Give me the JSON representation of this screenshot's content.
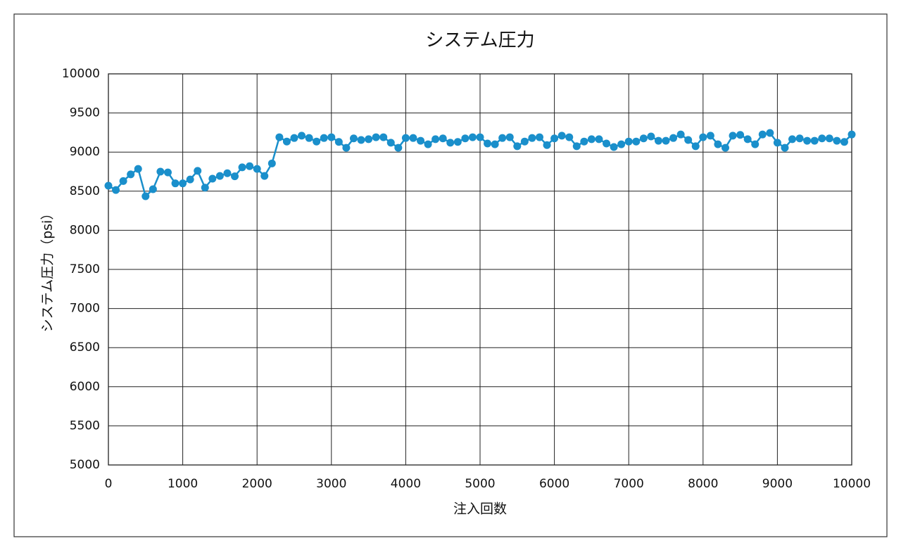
{
  "chart_data": {
    "type": "line",
    "title": "システム圧力",
    "x_label": "注入回数",
    "y_label": "システム圧力（psi）",
    "x": [
      0,
      100,
      200,
      300,
      400,
      500,
      600,
      700,
      800,
      900,
      1000,
      1100,
      1200,
      1300,
      1400,
      1500,
      1600,
      1700,
      1800,
      1900,
      2000,
      2100,
      2200,
      2300,
      2400,
      2500,
      2600,
      2700,
      2800,
      2900,
      3000,
      3100,
      3200,
      3300,
      3400,
      3500,
      3600,
      3700,
      3800,
      3900,
      4000,
      4100,
      4200,
      4300,
      4400,
      4500,
      4600,
      4700,
      4800,
      4900,
      5000,
      5100,
      5200,
      5300,
      5400,
      5500,
      5600,
      5700,
      5800,
      5900,
      6000,
      6100,
      6200,
      6300,
      6400,
      6500,
      6600,
      6700,
      6800,
      6900,
      7000,
      7100,
      7200,
      7300,
      7400,
      7500,
      7600,
      7700,
      7800,
      7900,
      8000,
      8100,
      8200,
      8300,
      8400,
      8500,
      8600,
      8700,
      8800,
      8900,
      9000,
      9100,
      9200,
      9300,
      9400,
      9500,
      9600,
      9700,
      9800,
      9900,
      10000
    ],
    "series": [
      {
        "name": "システム圧力",
        "color": "#1a8fcb",
        "values": [
          8570,
          8515,
          8630,
          8715,
          8785,
          8435,
          8525,
          8750,
          8740,
          8600,
          8600,
          8650,
          8760,
          8545,
          8660,
          8695,
          8730,
          8690,
          8805,
          8820,
          8785,
          8695,
          8855,
          9190,
          9135,
          9180,
          9210,
          9180,
          9135,
          9180,
          9190,
          9130,
          9055,
          9175,
          9155,
          9165,
          9190,
          9190,
          9120,
          9055,
          9180,
          9180,
          9145,
          9100,
          9165,
          9175,
          9120,
          9130,
          9175,
          9190,
          9190,
          9110,
          9100,
          9180,
          9190,
          9075,
          9135,
          9180,
          9190,
          9090,
          9175,
          9210,
          9190,
          9075,
          9135,
          9165,
          9165,
          9110,
          9065,
          9100,
          9135,
          9135,
          9175,
          9200,
          9145,
          9145,
          9180,
          9225,
          9155,
          9075,
          9190,
          9210,
          9100,
          9055,
          9210,
          9220,
          9165,
          9100,
          9225,
          9245,
          9120,
          9055,
          9165,
          9175,
          9145,
          9145,
          9175,
          9175,
          9145,
          9130,
          9225
        ]
      }
    ],
    "xlim": [
      0,
      10000
    ],
    "xticks": [
      0,
      1000,
      2000,
      3000,
      4000,
      5000,
      6000,
      7000,
      8000,
      9000,
      10000
    ],
    "ylim": [
      5000,
      10000
    ],
    "yticks": [
      5000,
      5500,
      6000,
      6500,
      7000,
      7500,
      8000,
      8500,
      9000,
      9500,
      10000
    ],
    "grid": true
  }
}
